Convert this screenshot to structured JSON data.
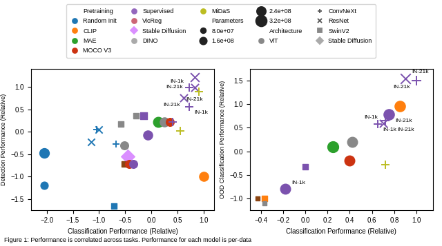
{
  "chart_data": [
    {
      "type": "scatter",
      "xlabel": "Classification Performance (Relative)",
      "ylabel": "Detection Performance (Relative)",
      "xlim": [
        -2.3,
        1.2
      ],
      "ylim": [
        -1.75,
        1.4
      ],
      "xticks": [
        {
          "value": -2.0,
          "label": "−2.0"
        },
        {
          "value": -1.5,
          "label": "−1.5"
        },
        {
          "value": -1.0,
          "label": "−1.0"
        },
        {
          "value": -0.5,
          "label": "−0.5"
        },
        {
          "value": 0.0,
          "label": "0.0"
        },
        {
          "value": 0.5,
          "label": "0.5"
        },
        {
          "value": 1.0,
          "label": "1.0"
        }
      ],
      "yticks": [
        {
          "value": -1.5,
          "label": "−1.5"
        },
        {
          "value": -1.0,
          "label": "−1.0"
        },
        {
          "value": -0.5,
          "label": "−0.5"
        },
        {
          "value": 0.0,
          "label": "0.0"
        },
        {
          "value": 0.5,
          "label": "0.5"
        },
        {
          "value": 1.0,
          "label": "1.0"
        }
      ],
      "x": [
        -2.05,
        -2.05,
        -1.05,
        -1.0,
        -1.15,
        -0.68,
        -0.72,
        -0.45,
        -0.58,
        -0.3,
        -0.52,
        -0.52,
        -0.42,
        -0.35,
        -0.15,
        -0.07,
        0.13,
        0.25,
        0.35,
        0.4,
        0.55,
        0.62,
        0.72,
        0.82,
        0.82,
        0.72,
        0.9,
        1.0
      ],
      "values": [
        -0.48,
        -1.2,
        0.05,
        0.05,
        -0.22,
        -0.28,
        -1.65,
        -0.55,
        0.17,
        0.35,
        -0.3,
        -0.72,
        -0.72,
        -0.72,
        0.35,
        -0.08,
        0.22,
        0.22,
        0.22,
        0.22,
        0.02,
        0.75,
        0.99,
        0.99,
        1.22,
        0.55,
        0.9,
        -1.0
      ],
      "colors": [
        "#1f77b4",
        "#1f77b4",
        "#1f77b4",
        "#1f77b4",
        "#1f77b4",
        "#1f77b4",
        "#1f77b4",
        "#da8fff",
        "#888888",
        "#888888",
        "#888888",
        "#8B4513",
        "#cc3311",
        "#7b52ae",
        "#7b52ae",
        "#7b52ae",
        "#2ca02c",
        "#888888",
        "#cc3311",
        "#7b52ae",
        "#bcbd22",
        "#7b52ae",
        "#7b52ae",
        "#7b52ae",
        "#7b52ae",
        "#7b52ae",
        "#bcbd22",
        "#ff7f0e"
      ],
      "markers": [
        "circle",
        "circle",
        "plus",
        "cross",
        "cross",
        "plus",
        "square",
        "diamond",
        "square",
        "square",
        "circle",
        "square",
        "circle",
        "circle",
        "square",
        "circle",
        "circle",
        "circle",
        "circle",
        "plus",
        "plus",
        "cross",
        "plus",
        "cross",
        "cross",
        "plus",
        "plus",
        "circle"
      ],
      "sizes": [
        100,
        60,
        55,
        55,
        55,
        55,
        40,
        100,
        40,
        40,
        70,
        30,
        70,
        70,
        55,
        90,
        110,
        90,
        70,
        65,
        65,
        65,
        65,
        65,
        85,
        65,
        65,
        90
      ],
      "labels": [
        null,
        null,
        null,
        null,
        null,
        null,
        null,
        null,
        null,
        null,
        null,
        null,
        null,
        null,
        null,
        null,
        null,
        null,
        null,
        null,
        null,
        null,
        "IN-1k",
        "IN-21k",
        "IN-21k",
        "IN-1k",
        "IN-21k",
        null
      ]
    },
    {
      "type": "scatter",
      "xlabel": "Classification Performance (Relative)",
      "ylabel": "OOD Classification Performance (Relative)",
      "xlim": [
        -0.5,
        1.15
      ],
      "ylim": [
        -1.25,
        1.75
      ],
      "xticks": [
        {
          "value": -0.4,
          "label": "−0.4"
        },
        {
          "value": -0.2,
          "label": "−0.2"
        },
        {
          "value": 0.0,
          "label": "0.0"
        },
        {
          "value": 0.2,
          "label": "0.2"
        },
        {
          "value": 0.4,
          "label": "0.4"
        },
        {
          "value": 0.6,
          "label": "0.6"
        },
        {
          "value": 0.8,
          "label": "0.8"
        },
        {
          "value": 1.0,
          "label": "1.0"
        }
      ],
      "yticks": [
        {
          "value": -1.0,
          "label": "−1.0"
        },
        {
          "value": -0.5,
          "label": "−0.5"
        },
        {
          "value": 0.0,
          "label": "0.0"
        },
        {
          "value": 0.5,
          "label": "0.5"
        },
        {
          "value": 1.0,
          "label": "1.0"
        },
        {
          "value": 1.5,
          "label": "1.5"
        }
      ],
      "x": [
        -0.43,
        -0.37,
        -0.37,
        -0.18,
        0.0,
        0.25,
        0.4,
        0.42,
        0.65,
        0.7,
        0.72,
        0.75,
        0.85,
        0.72,
        1.0,
        0.9
      ],
      "values": [
        -1.0,
        -1.0,
        -1.1,
        -0.8,
        -0.32,
        0.1,
        -0.2,
        0.2,
        0.58,
        0.6,
        0.65,
        0.78,
        0.96,
        -0.28,
        1.5,
        1.55
      ],
      "colors": [
        "#8B4513",
        "#ff7f0e",
        "#888888",
        "#7b52ae",
        "#7b52ae",
        "#2ca02c",
        "#cc3311",
        "#888888",
        "#7b52ae",
        "#7b52ae",
        "#7b52ae",
        "#7b52ae",
        "#ff7f0e",
        "#bcbd22",
        "#7b52ae",
        "#7b52ae"
      ],
      "markers": [
        "square",
        "square",
        "square",
        "circle",
        "square",
        "circle",
        "circle",
        "circle",
        "plus",
        "cross",
        "plus",
        "circle",
        "circle",
        "plus",
        "plus",
        "cross"
      ],
      "sizes": [
        25,
        40,
        25,
        110,
        40,
        130,
        110,
        110,
        65,
        65,
        65,
        120,
        120,
        65,
        110,
        110
      ],
      "labels": [
        null,
        null,
        null,
        "IN-1k",
        null,
        null,
        null,
        null,
        "IN-1k",
        "IN-1k",
        "IN-21k",
        "IN-21k",
        null,
        null,
        "IN-21k",
        "IN-21k"
      ]
    }
  ],
  "legend": "upper center",
  "legend_groups": [
    {
      "title": "Pretraining",
      "entries": [
        {
          "name": "Random Init",
          "marker": "circle",
          "color": "#1f77b4"
        },
        {
          "name": "CLIP",
          "marker": "circle",
          "color": "#ff7f0e"
        },
        {
          "name": "MAE",
          "marker": "circle",
          "color": "#2ca02c"
        },
        {
          "name": "MOCO V3",
          "marker": "circle",
          "color": "#cc3311"
        },
        {
          "name": "Supervised",
          "marker": "circle",
          "color": "#9467bd"
        },
        {
          "name": "VicReg",
          "marker": "circle",
          "color": "#cc6677"
        },
        {
          "name": "Stable Diffusion",
          "marker": "diamond",
          "color": "#da8fff"
        },
        {
          "name": "DINO",
          "marker": "circle",
          "color": "#aaaaaa"
        },
        {
          "name": "MiDaS",
          "marker": "circle",
          "color": "#bcbd22"
        }
      ]
    },
    {
      "title": "Parameters",
      "entries": [
        {
          "name": "8.0e+07",
          "marker": "circle",
          "color": "#222222",
          "size": 30
        },
        {
          "name": "1.6e+08",
          "marker": "circle",
          "color": "#222222",
          "size": 55
        },
        {
          "name": "2.4e+08",
          "marker": "circle",
          "color": "#222222",
          "size": 90
        },
        {
          "name": "3.2e+08",
          "marker": "circle",
          "color": "#222222",
          "size": 130
        }
      ]
    },
    {
      "title": "Architecture",
      "entries": [
        {
          "name": "ViT",
          "marker": "circle",
          "color": "#888888"
        },
        {
          "name": "ConvNeXt",
          "marker": "plus",
          "color": "#555555"
        },
        {
          "name": "ResNet",
          "marker": "cross",
          "color": "#555555"
        },
        {
          "name": "SwinV2",
          "marker": "square",
          "color": "#888888"
        },
        {
          "name": "Stable Diffusion",
          "marker": "diamond",
          "color": "#aaaaaa"
        }
      ]
    }
  ],
  "caption": "Figure 1: Performance is correlated across tasks. Performance for each model is per-data"
}
